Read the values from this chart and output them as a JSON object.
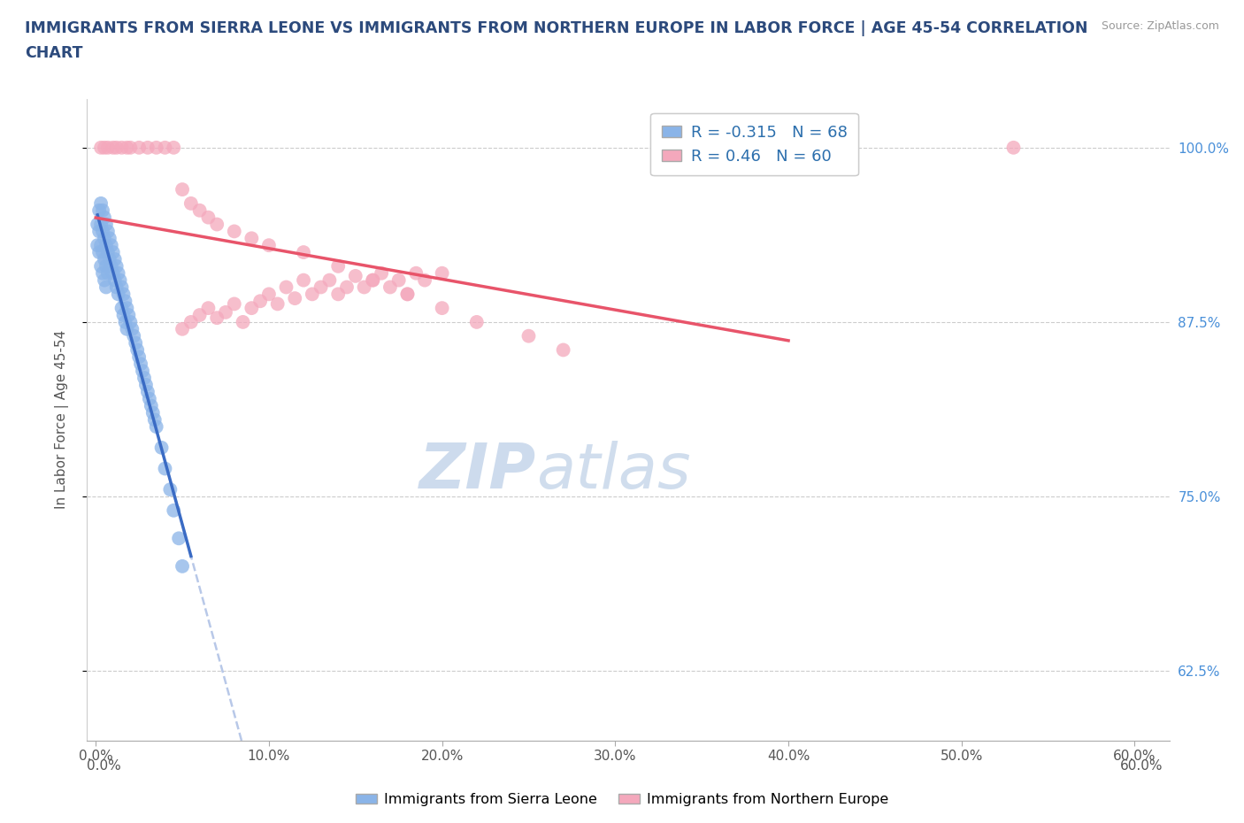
{
  "title": "IMMIGRANTS FROM SIERRA LEONE VS IMMIGRANTS FROM NORTHERN EUROPE IN LABOR FORCE | AGE 45-54 CORRELATION\nCHART",
  "source_text": "Source: ZipAtlas.com",
  "ylabel": "In Labor Force | Age 45-54",
  "legend_label_1": "Immigrants from Sierra Leone",
  "legend_label_2": "Immigrants from Northern Europe",
  "r1": -0.315,
  "n1": 68,
  "r2": 0.46,
  "n2": 60,
  "color1": "#8ab4e8",
  "color2": "#f4a8bc",
  "trendline1_color": "#3a6bc4",
  "trendline2_color": "#e8546a",
  "dashed_line_color": "#b8c8e8",
  "xlim": [
    -0.005,
    0.62
  ],
  "ylim": [
    0.575,
    1.035
  ],
  "xticks": [
    0.0,
    0.1,
    0.2,
    0.3,
    0.4,
    0.5,
    0.6
  ],
  "xtick_labels": [
    "0.0%",
    "10.0%",
    "20.0%",
    "30.0%",
    "40.0%",
    "50.0%",
    "60.0%"
  ],
  "yticks_right": [
    0.625,
    0.75,
    0.875,
    1.0
  ],
  "ytick_labels_right": [
    "62.5%",
    "75.0%",
    "87.5%",
    "100.0%"
  ],
  "watermark_zip": "ZIP",
  "watermark_atlas": "atlas",
  "background_color": "#ffffff",
  "grid_color": "#cccccc",
  "sl_x": [
    0.001,
    0.001,
    0.002,
    0.002,
    0.002,
    0.003,
    0.003,
    0.003,
    0.003,
    0.004,
    0.004,
    0.004,
    0.004,
    0.005,
    0.005,
    0.005,
    0.005,
    0.006,
    0.006,
    0.006,
    0.006,
    0.007,
    0.007,
    0.007,
    0.008,
    0.008,
    0.009,
    0.009,
    0.01,
    0.01,
    0.011,
    0.011,
    0.012,
    0.012,
    0.013,
    0.013,
    0.014,
    0.015,
    0.015,
    0.016,
    0.016,
    0.017,
    0.017,
    0.018,
    0.018,
    0.019,
    0.02,
    0.021,
    0.022,
    0.023,
    0.024,
    0.025,
    0.026,
    0.027,
    0.028,
    0.029,
    0.03,
    0.031,
    0.032,
    0.033,
    0.034,
    0.035,
    0.038,
    0.04,
    0.043,
    0.045,
    0.048,
    0.05
  ],
  "sl_y": [
    0.945,
    0.93,
    0.955,
    0.94,
    0.925,
    0.96,
    0.945,
    0.93,
    0.915,
    0.955,
    0.94,
    0.925,
    0.91,
    0.95,
    0.935,
    0.92,
    0.905,
    0.945,
    0.93,
    0.915,
    0.9,
    0.94,
    0.925,
    0.91,
    0.935,
    0.92,
    0.93,
    0.915,
    0.925,
    0.91,
    0.92,
    0.905,
    0.915,
    0.9,
    0.91,
    0.895,
    0.905,
    0.9,
    0.885,
    0.895,
    0.88,
    0.89,
    0.875,
    0.885,
    0.87,
    0.88,
    0.875,
    0.87,
    0.865,
    0.86,
    0.855,
    0.85,
    0.845,
    0.84,
    0.835,
    0.83,
    0.825,
    0.82,
    0.815,
    0.81,
    0.805,
    0.8,
    0.785,
    0.77,
    0.755,
    0.74,
    0.72,
    0.7
  ],
  "ne_x": [
    0.05,
    0.055,
    0.06,
    0.065,
    0.07,
    0.075,
    0.08,
    0.085,
    0.09,
    0.095,
    0.1,
    0.105,
    0.11,
    0.115,
    0.12,
    0.125,
    0.13,
    0.135,
    0.14,
    0.145,
    0.15,
    0.155,
    0.16,
    0.165,
    0.17,
    0.175,
    0.18,
    0.185,
    0.19,
    0.2,
    0.003,
    0.005,
    0.007,
    0.01,
    0.012,
    0.015,
    0.018,
    0.02,
    0.025,
    0.03,
    0.035,
    0.04,
    0.045,
    0.05,
    0.055,
    0.06,
    0.065,
    0.07,
    0.08,
    0.09,
    0.1,
    0.12,
    0.14,
    0.16,
    0.18,
    0.2,
    0.22,
    0.25,
    0.27,
    0.53
  ],
  "ne_y": [
    0.87,
    0.875,
    0.88,
    0.885,
    0.878,
    0.882,
    0.888,
    0.875,
    0.885,
    0.89,
    0.895,
    0.888,
    0.9,
    0.892,
    0.905,
    0.895,
    0.9,
    0.905,
    0.895,
    0.9,
    0.908,
    0.9,
    0.905,
    0.91,
    0.9,
    0.905,
    0.895,
    0.91,
    0.905,
    0.91,
    1.0,
    1.0,
    1.0,
    1.0,
    1.0,
    1.0,
    1.0,
    1.0,
    1.0,
    1.0,
    1.0,
    1.0,
    1.0,
    0.97,
    0.96,
    0.955,
    0.95,
    0.945,
    0.94,
    0.935,
    0.93,
    0.925,
    0.915,
    0.905,
    0.895,
    0.885,
    0.875,
    0.865,
    0.855,
    1.0
  ]
}
